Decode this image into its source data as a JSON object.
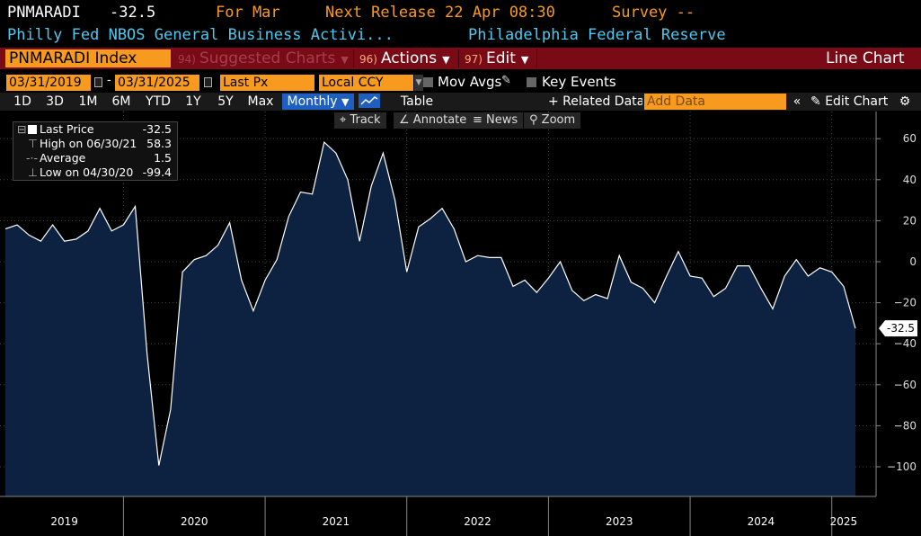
{
  "header": {
    "ticker": "PNMARADI",
    "value": "-32.5",
    "for_label": "For Mar",
    "next_release": "Next Release 22 Apr 08:30",
    "survey": "Survey --",
    "description": "Philly Fed NBOS General Business Activi...",
    "source": "Philadelphia Federal Reserve"
  },
  "toolbar": {
    "security": "PNMARADI Index",
    "suggested": {
      "num": "94)",
      "label": "Suggested Charts"
    },
    "actions": {
      "num": "96)",
      "label": "Actions"
    },
    "edit": {
      "num": "97)",
      "label": "Edit"
    },
    "chart_type": "Line Chart"
  },
  "daterow": {
    "start": "03/31/2019",
    "end": "03/31/2025",
    "field": "Last Px",
    "currency": "Local CCY",
    "mov_avgs": "Mov Avgs",
    "key_events": "Key Events"
  },
  "rangerow": {
    "ranges": [
      "1D",
      "3D",
      "1M",
      "6M",
      "YTD",
      "1Y",
      "5Y",
      "Max"
    ],
    "frequency": "Monthly",
    "table": "Table",
    "related": "+ Related Data",
    "add_placeholder": "Add Data",
    "edit_chart": "Edit Chart"
  },
  "chart_tools": [
    "Track",
    "Annotate",
    "News",
    "Zoom"
  ],
  "legend": {
    "last": {
      "label": "Last Price",
      "value": "-32.5"
    },
    "high": {
      "label": "High on 06/30/21",
      "value": "58.3"
    },
    "avg": {
      "label": "Average",
      "value": "1.5"
    },
    "low": {
      "label": "Low on 04/30/20",
      "value": "-99.4"
    }
  },
  "colors": {
    "accent": "#f79a1e",
    "toolbar": "#7a0a16",
    "area_fill": "#0c2240",
    "line": "#ffffff",
    "selected": "#1f5fbf",
    "header_blue": "#4fc8f0",
    "header_orange": "#f79a1e"
  },
  "chart_data": {
    "type": "area",
    "x": [
      "2019-03",
      "2019-04",
      "2019-05",
      "2019-06",
      "2019-07",
      "2019-08",
      "2019-09",
      "2019-10",
      "2019-11",
      "2019-12",
      "2020-01",
      "2020-02",
      "2020-03",
      "2020-04",
      "2020-05",
      "2020-06",
      "2020-07",
      "2020-08",
      "2020-09",
      "2020-10",
      "2020-11",
      "2020-12",
      "2021-01",
      "2021-02",
      "2021-03",
      "2021-04",
      "2021-05",
      "2021-06",
      "2021-07",
      "2021-08",
      "2021-09",
      "2021-10",
      "2021-11",
      "2021-12",
      "2022-01",
      "2022-02",
      "2022-03",
      "2022-04",
      "2022-05",
      "2022-06",
      "2022-07",
      "2022-08",
      "2022-09",
      "2022-10",
      "2022-11",
      "2022-12",
      "2023-01",
      "2023-02",
      "2023-03",
      "2023-04",
      "2023-05",
      "2023-06",
      "2023-07",
      "2023-08",
      "2023-09",
      "2023-10",
      "2023-11",
      "2023-12",
      "2024-01",
      "2024-02",
      "2024-03",
      "2024-04",
      "2024-05",
      "2024-06",
      "2024-07",
      "2024-08",
      "2024-09",
      "2024-10",
      "2024-11",
      "2024-12",
      "2025-01",
      "2025-02",
      "2025-03"
    ],
    "y": [
      16,
      18,
      13,
      10,
      18,
      10,
      11,
      15,
      26,
      15,
      18,
      27,
      -45,
      -99.4,
      -72,
      -5,
      1,
      3,
      8,
      19,
      -9,
      -24,
      -9,
      1,
      22,
      34,
      33,
      58.3,
      53,
      40,
      10,
      37,
      53,
      30,
      -5,
      17,
      21,
      26,
      16,
      0,
      3,
      2,
      2,
      -12,
      -9,
      -15,
      -8,
      0,
      -14,
      -19,
      -16,
      -18,
      3,
      -10,
      -13,
      -20,
      -7,
      5,
      -7,
      -8,
      -17,
      -13,
      -2,
      -2,
      -13,
      -23,
      -7,
      1,
      -7,
      -3,
      -5,
      -12,
      -32.5
    ],
    "y_ticks": [
      "60",
      "40",
      "20",
      "0",
      "−20",
      "−40",
      "−60",
      "−80",
      "−100"
    ],
    "y_tick_values": [
      60,
      40,
      20,
      0,
      -20,
      -40,
      -60,
      -80,
      -100
    ],
    "ylim": [
      -115,
      70
    ],
    "year_labels": [
      "2019",
      "2020",
      "2021",
      "2022",
      "2023",
      "2024",
      "2025"
    ],
    "last_label": "-32.5"
  }
}
